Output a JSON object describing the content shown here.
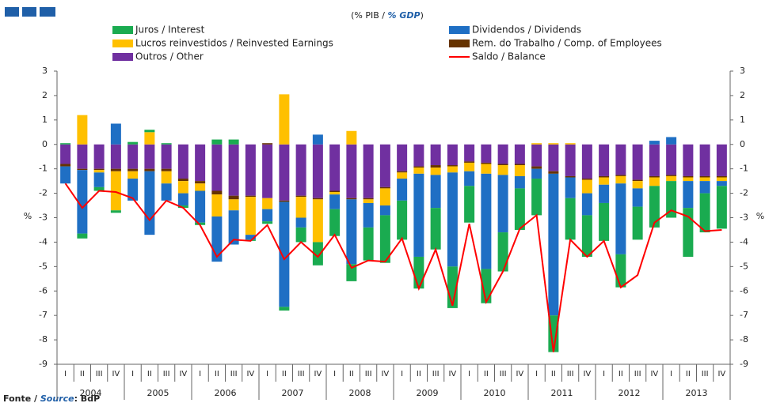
{
  "chart_data": {
    "type": "bar",
    "title_parts": [
      "(% PIB / ",
      "% GDP",
      ")"
    ],
    "y_label": "%",
    "source_parts": [
      "Fonte / ",
      "Source",
      ": BdP"
    ],
    "categories": [
      "I",
      "II",
      "III",
      "IV",
      "I",
      "II",
      "III",
      "IV",
      "I",
      "II",
      "III",
      "IV",
      "I",
      "II",
      "III",
      "IV",
      "I",
      "II",
      "III",
      "IV",
      "I",
      "II",
      "III",
      "IV",
      "I",
      "II",
      "III",
      "IV",
      "I",
      "II",
      "III",
      "IV",
      "I",
      "II",
      "III",
      "IV",
      "I",
      "II",
      "III",
      "IV"
    ],
    "years": [
      "2004",
      "2005",
      "2006",
      "2007",
      "2008",
      "2009",
      "2010",
      "2011",
      "2012",
      "2013"
    ],
    "ylim": [
      -9,
      3
    ],
    "yticks": [
      -9,
      -8,
      -7,
      -6,
      -5,
      -4,
      -3,
      -2,
      -1,
      0,
      1,
      2,
      3
    ],
    "series": [
      {
        "name": "Outros / Other",
        "color": "#7030a0",
        "type": "bar",
        "values": [
          -0.8,
          -1.0,
          -1.0,
          -1.0,
          -1.0,
          -1.0,
          -1.0,
          -1.4,
          -1.5,
          -1.9,
          -2.1,
          -2.1,
          -2.2,
          -2.3,
          -2.1,
          -2.2,
          -1.9,
          -2.2,
          -2.2,
          -1.75,
          -1.1,
          -0.9,
          -0.85,
          -0.85,
          -0.7,
          -0.75,
          -0.8,
          -0.8,
          -0.9,
          -1.1,
          -1.3,
          -1.4,
          -1.3,
          -1.25,
          -1.45,
          -1.3,
          -1.25,
          -1.3,
          -1.3,
          -1.3
        ]
      },
      {
        "name": "Rem. do Trabalho / Comp. of Employees",
        "color": "#663300",
        "type": "bar",
        "values": [
          -0.1,
          -0.05,
          -0.05,
          -0.1,
          -0.1,
          -0.1,
          -0.1,
          -0.1,
          -0.1,
          -0.15,
          -0.15,
          -0.05,
          0.05,
          -0.05,
          -0.05,
          -0.05,
          -0.05,
          -0.05,
          -0.05,
          -0.05,
          -0.05,
          -0.05,
          -0.1,
          -0.05,
          -0.05,
          -0.05,
          -0.05,
          -0.05,
          -0.1,
          -0.1,
          -0.05,
          -0.05,
          -0.05,
          -0.05,
          -0.05,
          -0.05,
          -0.05,
          -0.05,
          -0.05,
          -0.05
        ]
      },
      {
        "name": "Lucros reinvestidos / Reinvested Earnings",
        "color": "#ffc000",
        "type": "bar",
        "values": [
          0,
          1.2,
          -0.1,
          -1.6,
          -0.3,
          0.5,
          -0.5,
          -0.5,
          -0.3,
          -0.9,
          -0.45,
          -1.55,
          -0.45,
          2.05,
          -0.85,
          -1.75,
          -0.1,
          0.55,
          -0.15,
          -0.7,
          -0.25,
          -0.25,
          -0.3,
          -0.25,
          -0.35,
          -0.4,
          -0.4,
          -0.45,
          0.05,
          0.05,
          0.05,
          -0.55,
          -0.3,
          -0.3,
          -0.3,
          -0.35,
          -0.2,
          -0.15,
          -0.15,
          -0.15
        ]
      },
      {
        "name": "Dividendos / Dividends",
        "color": "#1f6fc4",
        "type": "bar",
        "values": [
          -0.7,
          -2.6,
          -0.6,
          0.85,
          -0.9,
          -2.6,
          -0.7,
          -0.5,
          -1.3,
          -1.85,
          -1.4,
          -0.2,
          -0.5,
          -4.3,
          -0.4,
          0.4,
          -0.6,
          -2.65,
          -1.0,
          -0.4,
          -0.9,
          -3.4,
          -1.35,
          -3.85,
          -0.6,
          -3.9,
          -2.35,
          -0.5,
          -0.4,
          -5.8,
          -0.85,
          -0.9,
          -0.75,
          -2.9,
          -0.75,
          0.15,
          0.3,
          -1.1,
          -0.5,
          -0.2
        ]
      },
      {
        "name": "Juros / Interest",
        "color": "#1aab50",
        "type": "bar",
        "values": [
          0.05,
          -0.2,
          -0.15,
          -0.1,
          0.1,
          0.1,
          0.05,
          -0.1,
          -0.1,
          0.2,
          0.2,
          -0.05,
          -0.1,
          -0.15,
          -0.6,
          -0.95,
          -1.1,
          -0.7,
          -1.35,
          -1.95,
          -1.6,
          -1.3,
          -1.7,
          -1.7,
          -1.5,
          -1.4,
          -1.6,
          -1.7,
          -1.5,
          -1.5,
          -1.7,
          -1.7,
          -1.55,
          -1.35,
          -1.35,
          -1.7,
          -1.5,
          -2.0,
          -1.6,
          -1.75
        ]
      },
      {
        "name": "Saldo / Balance",
        "color": "#ff0000",
        "type": "line",
        "values": [
          -1.6,
          -2.6,
          -1.9,
          -1.95,
          -2.2,
          -3.1,
          -2.3,
          -2.6,
          -3.3,
          -4.6,
          -3.9,
          -3.95,
          -3.3,
          -4.7,
          -4.0,
          -4.6,
          -3.7,
          -5.05,
          -4.75,
          -4.8,
          -3.85,
          -5.9,
          -4.3,
          -6.6,
          -3.25,
          -6.45,
          -5.2,
          -3.45,
          -2.9,
          -8.5,
          -3.9,
          -4.6,
          -3.95,
          -5.85,
          -5.35,
          -3.2,
          -2.7,
          -2.95,
          -3.55,
          -3.5
        ]
      }
    ]
  }
}
